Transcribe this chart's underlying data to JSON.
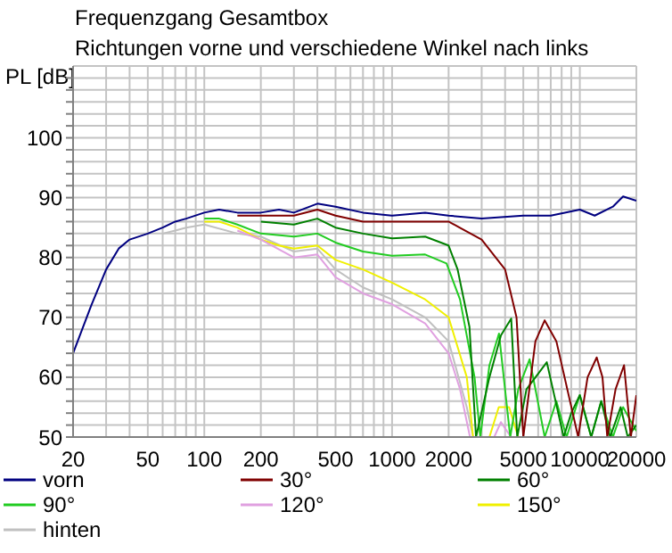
{
  "chart_data": {
    "type": "line",
    "title": "Frequenzgang Gesamtbox",
    "subtitle": "Richtungen vorne und verschiedene Winkel nach links",
    "ylabel": "PL [dB]",
    "log": "x",
    "grid": true,
    "legend": "bottom",
    "xlim": [
      20,
      20000
    ],
    "ylim": [
      50,
      112
    ],
    "xticks": [
      20,
      {
        "value": 30,
        "label": null
      },
      {
        "value": 40,
        "label": null
      },
      50,
      {
        "value": 60,
        "label": null
      },
      {
        "value": 70,
        "label": null
      },
      {
        "value": 80,
        "label": null
      },
      {
        "value": 90,
        "label": null
      },
      100,
      200,
      {
        "value": 300,
        "label": null
      },
      {
        "value": 400,
        "label": null
      },
      500,
      {
        "value": 600,
        "label": null
      },
      {
        "value": 700,
        "label": null
      },
      {
        "value": 800,
        "label": null
      },
      {
        "value": 900,
        "label": null
      },
      1000,
      2000,
      {
        "value": 3000,
        "label": null
      },
      {
        "value": 4000,
        "label": null
      },
      5000,
      {
        "value": 6000,
        "label": null
      },
      {
        "value": 7000,
        "label": null
      },
      {
        "value": 8000,
        "label": null
      },
      {
        "value": 9000,
        "label": null
      },
      10000,
      20000
    ],
    "yticks": [
      50,
      {
        "value": 52,
        "label": null
      },
      {
        "value": 54,
        "label": null
      },
      {
        "value": 56,
        "label": null
      },
      {
        "value": 58,
        "label": null
      },
      60,
      {
        "value": 62,
        "label": null
      },
      {
        "value": 64,
        "label": null
      },
      {
        "value": 66,
        "label": null
      },
      {
        "value": 68,
        "label": null
      },
      70,
      {
        "value": 72,
        "label": null
      },
      {
        "value": 74,
        "label": null
      },
      {
        "value": 76,
        "label": null
      },
      {
        "value": 78,
        "label": null
      },
      80,
      {
        "value": 82,
        "label": null
      },
      {
        "value": 84,
        "label": null
      },
      {
        "value": 86,
        "label": null
      },
      {
        "value": 88,
        "label": null
      },
      90,
      {
        "value": 92,
        "label": null
      },
      {
        "value": 94,
        "label": null
      },
      {
        "value": 96,
        "label": null
      },
      {
        "value": 98,
        "label": null
      },
      100,
      {
        "value": 102,
        "label": null
      },
      {
        "value": 104,
        "label": null
      },
      {
        "value": 106,
        "label": null
      },
      {
        "value": 108,
        "label": null
      },
      {
        "value": 110,
        "label": null
      }
    ],
    "series": [
      {
        "name": "vorn",
        "color": "#000080",
        "x": [
          20,
          25,
          30,
          35,
          40,
          50,
          60,
          70,
          80,
          100,
          120,
          150,
          200,
          250,
          300,
          400,
          500,
          700,
          1000,
          1500,
          2000,
          3000,
          5000,
          7000,
          10000,
          12000,
          15000,
          17000,
          20000
        ],
        "values": [
          64,
          72,
          78,
          81.5,
          83,
          84,
          85,
          86,
          86.5,
          87.5,
          88,
          87.5,
          87.5,
          88,
          87.5,
          89,
          88.5,
          87.5,
          87,
          87.5,
          87,
          86.5,
          87,
          87,
          88,
          87,
          88.5,
          90.2,
          89.5
        ]
      },
      {
        "name": "30°",
        "color": "#800000",
        "x": [
          150,
          200,
          300,
          400,
          500,
          700,
          1000,
          2000,
          3000,
          4000,
          4600,
          5000,
          5800,
          6500,
          7500,
          9800,
          11000,
          12300,
          13200,
          14000,
          15500,
          17200,
          18700,
          20000
        ],
        "values": [
          87,
          87,
          87,
          88,
          87,
          86,
          86,
          86,
          83,
          78,
          70,
          50,
          66,
          69.5,
          66,
          50,
          60,
          63.3,
          60,
          50,
          58,
          62,
          50,
          57
        ]
      },
      {
        "name": "60°",
        "color": "#008000",
        "x": [
          200,
          300,
          400,
          500,
          700,
          1000,
          1500,
          2000,
          2234,
          2583,
          2800,
          3300,
          3800,
          4310,
          4640,
          5200,
          6670,
          8200,
          9000,
          10000,
          11500,
          13000,
          14500,
          16500,
          18000,
          20000
        ],
        "values": [
          86,
          85.5,
          86.5,
          85,
          84,
          83.2,
          83.5,
          82,
          78,
          68.4,
          50,
          60,
          67,
          69.8,
          50,
          58,
          62.5,
          50,
          54,
          57,
          50,
          56,
          50,
          55,
          50,
          52
        ]
      },
      {
        "name": "90°",
        "color": "#22cc22",
        "x": [
          100,
          120,
          150,
          200,
          300,
          400,
          500,
          700,
          1000,
          1500,
          1950,
          2300,
          2750,
          2950,
          3300,
          3710,
          4260,
          4700,
          5400,
          6500,
          7500,
          8500,
          10000,
          11500,
          13000,
          15000,
          17000,
          20000
        ],
        "values": [
          86.5,
          86.5,
          85.5,
          84,
          83.5,
          84,
          82.5,
          81,
          80.3,
          80.5,
          79,
          73,
          60,
          50,
          62,
          67.3,
          50,
          58,
          63,
          50,
          56,
          50,
          57,
          50,
          56,
          50,
          55,
          51
        ]
      },
      {
        "name": "120°",
        "color": "#e0a0e0",
        "x": [
          150,
          200,
          300,
          400,
          500,
          700,
          1000,
          1500,
          2000,
          2300,
          2600,
          3500,
          3800,
          4300,
          5000
        ],
        "values": [
          84.5,
          83,
          80,
          80.5,
          76.7,
          74,
          72.2,
          69,
          64,
          58,
          50,
          50,
          52.5,
          50,
          50
        ]
      },
      {
        "name": "150°",
        "color": "#f0f000",
        "x": [
          100,
          120,
          150,
          200,
          250,
          300,
          400,
          500,
          700,
          1000,
          1500,
          2000,
          2500,
          2700,
          3300,
          3700,
          4200,
          4700
        ],
        "values": [
          86,
          86,
          85,
          83,
          82,
          81.5,
          82,
          79.6,
          78,
          75.8,
          73,
          70,
          60,
          50,
          50,
          55,
          55,
          50
        ]
      },
      {
        "name": "hinten",
        "color": "#c0c0c0",
        "x": [
          60,
          70,
          80,
          100,
          150,
          200,
          300,
          400,
          500,
          700,
          1000,
          1500,
          2000,
          2500,
          2700
        ],
        "values": [
          84,
          84.5,
          85,
          85.5,
          84,
          83.5,
          81,
          81.5,
          78,
          75,
          73,
          70,
          66,
          55,
          50
        ]
      }
    ]
  }
}
